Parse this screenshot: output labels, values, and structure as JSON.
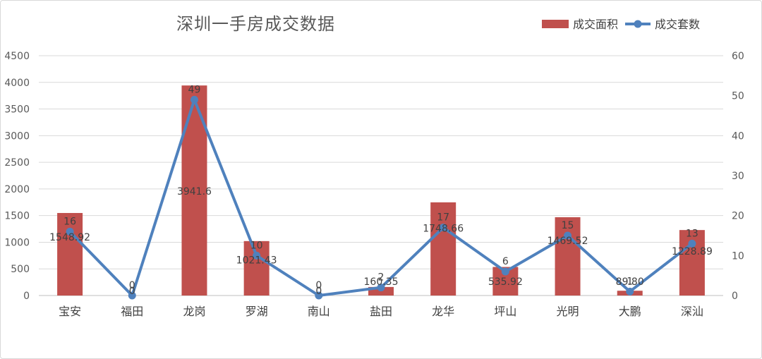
{
  "chart_data": {
    "type": "bar",
    "title": "深圳一手房成交数据",
    "categories": [
      "宝安",
      "福田",
      "龙岗",
      "罗湖",
      "南山",
      "盐田",
      "龙华",
      "坪山",
      "光明",
      "大鹏",
      "深汕"
    ],
    "series": [
      {
        "name": "成交面积",
        "type": "bar",
        "axis": "left",
        "color": "#c0504d",
        "values": [
          1548.92,
          0,
          3941.6,
          1021.43,
          0,
          160.35,
          1748.66,
          535.92,
          1469.52,
          89.8,
          1228.89
        ],
        "labels": [
          "1548.92",
          "",
          "3941.6",
          "1021.43",
          "",
          "160.35",
          "1748.66",
          "535.92",
          "1469.52",
          "89.80",
          "1228.89"
        ]
      },
      {
        "name": "成交套数",
        "type": "line",
        "axis": "right",
        "color": "#4f81bd",
        "values": [
          16,
          0,
          49,
          10,
          0,
          2,
          17,
          6,
          15,
          1,
          13
        ],
        "labels": [
          "16",
          "0",
          "49",
          "10",
          "0",
          "2",
          "17",
          "6",
          "15",
          "1",
          "13"
        ]
      }
    ],
    "extra_labels": [
      {
        "category_index": 1,
        "text": "0"
      },
      {
        "category_index": 4,
        "text": "0"
      }
    ],
    "y_left": {
      "min": 0,
      "max": 4500,
      "step": 500,
      "ticks": [
        "0",
        "500",
        "1000",
        "1500",
        "2000",
        "2500",
        "3000",
        "3500",
        "4000",
        "4500"
      ]
    },
    "y_right": {
      "min": 0,
      "max": 60,
      "step": 10,
      "ticks": [
        "0",
        "10",
        "20",
        "30",
        "40",
        "50",
        "60"
      ]
    },
    "grid": true,
    "legend": "top-right"
  }
}
